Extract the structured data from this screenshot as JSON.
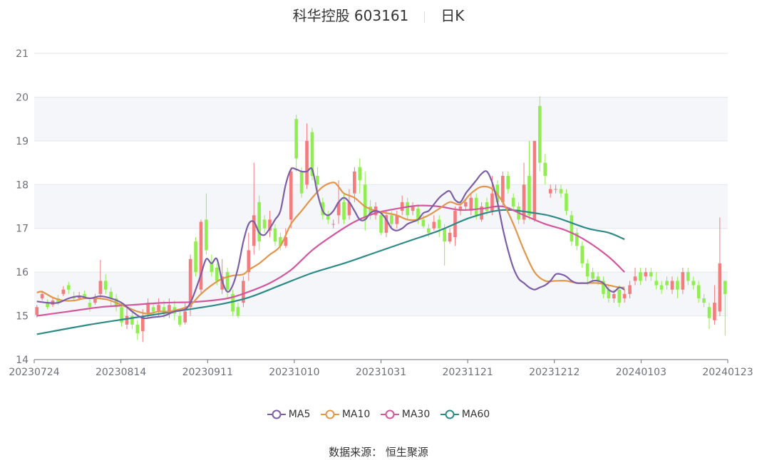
{
  "title": {
    "name": "科华控股 603161",
    "period": "日K"
  },
  "source": "数据来源： 恒生聚源",
  "colors": {
    "up": "#f47c7c",
    "down": "#90ee50",
    "ma5": "#7b5ea7",
    "ma10": "#e1964a",
    "ma30": "#d2579c",
    "ma60": "#2e8a87",
    "band": "#f5f6fa",
    "grid": "#e3e6ee",
    "axis": "#6e7079"
  },
  "chart_data": {
    "type": "candlestick",
    "x_ticks": [
      "20230724",
      "20230814",
      "20230911",
      "20231010",
      "20231031",
      "20231121",
      "20231212",
      "20240103",
      "20240123"
    ],
    "ylim": [
      14,
      21
    ],
    "y_ticks": [
      14,
      15,
      16,
      17,
      18,
      19,
      20,
      21
    ],
    "legend": [
      "MA5",
      "MA10",
      "MA30",
      "MA60"
    ],
    "candles": [
      [
        15.02,
        15.2,
        14.96,
        15.25
      ],
      [
        15.4,
        15.5,
        15.35,
        15.58
      ],
      [
        15.3,
        15.2,
        15.15,
        15.38
      ],
      [
        15.25,
        15.35,
        15.2,
        15.42
      ],
      [
        15.4,
        15.3,
        15.25,
        15.48
      ],
      [
        15.5,
        15.6,
        15.45,
        15.68
      ],
      [
        15.7,
        15.6,
        15.5,
        15.78
      ],
      [
        15.45,
        15.4,
        15.35,
        15.55
      ],
      [
        15.4,
        15.45,
        15.35,
        15.55
      ],
      [
        15.5,
        15.42,
        15.38,
        15.58
      ],
      [
        15.3,
        15.2,
        15.1,
        15.38
      ],
      [
        15.3,
        15.4,
        15.25,
        15.5
      ],
      [
        15.5,
        15.8,
        15.4,
        16.28
      ],
      [
        15.8,
        15.6,
        15.5,
        15.95
      ],
      [
        15.55,
        15.4,
        15.2,
        15.65
      ],
      [
        15.4,
        15.2,
        15.1,
        15.5
      ],
      [
        15.2,
        14.85,
        14.75,
        15.3
      ],
      [
        14.8,
        15.0,
        14.7,
        15.2
      ],
      [
        15.0,
        14.8,
        14.7,
        15.1
      ],
      [
        14.8,
        14.6,
        14.45,
        14.9
      ],
      [
        14.65,
        15.0,
        14.4,
        15.15
      ],
      [
        15.05,
        15.3,
        14.95,
        15.4
      ],
      [
        15.2,
        15.1,
        15.0,
        15.3
      ],
      [
        15.1,
        15.25,
        15.0,
        15.4
      ],
      [
        15.2,
        15.05,
        14.95,
        15.35
      ],
      [
        15.05,
        15.25,
        14.95,
        15.4
      ],
      [
        15.2,
        15.05,
        14.9,
        15.35
      ],
      [
        15.0,
        14.8,
        14.75,
        15.15
      ],
      [
        14.85,
        15.1,
        14.8,
        15.3
      ],
      [
        15.2,
        16.3,
        15.0,
        16.4
      ],
      [
        16.7,
        16.0,
        15.9,
        16.8
      ],
      [
        15.6,
        17.15,
        15.5,
        17.2
      ],
      [
        17.2,
        16.5,
        16.4,
        17.8
      ],
      [
        16.2,
        16.0,
        15.9,
        16.4
      ],
      [
        16.1,
        15.8,
        15.7,
        16.2
      ],
      [
        15.6,
        15.9,
        15.5,
        16.3
      ],
      [
        16.0,
        15.6,
        15.4,
        16.1
      ],
      [
        15.5,
        15.1,
        15.0,
        15.6
      ],
      [
        15.2,
        15.0,
        14.95,
        15.3
      ],
      [
        15.3,
        15.8,
        15.2,
        15.9
      ],
      [
        16.0,
        16.5,
        15.8,
        16.9
      ],
      [
        16.6,
        17.3,
        16.4,
        18.5
      ],
      [
        17.6,
        16.7,
        16.5,
        17.75
      ],
      [
        17.2,
        17.0,
        16.9,
        17.3
      ],
      [
        16.95,
        17.2,
        16.8,
        17.4
      ],
      [
        17.0,
        16.7,
        16.6,
        17.1
      ],
      [
        16.8,
        16.6,
        16.5,
        16.9
      ],
      [
        16.6,
        16.8,
        16.55,
        17.0
      ],
      [
        17.2,
        18.3,
        17.0,
        18.4
      ],
      [
        19.5,
        18.6,
        18.3,
        19.6
      ],
      [
        18.3,
        17.8,
        17.7,
        18.4
      ],
      [
        18.0,
        19.0,
        17.9,
        19.4
      ],
      [
        19.2,
        18.2,
        18.1,
        19.3
      ],
      [
        18.2,
        18.0,
        17.8,
        18.4
      ],
      [
        17.6,
        17.3,
        17.2,
        17.7
      ],
      [
        17.3,
        17.2,
        17.1,
        17.4
      ],
      [
        17.1,
        17.1,
        17.0,
        17.2
      ],
      [
        17.3,
        17.6,
        17.1,
        18.1
      ],
      [
        17.6,
        17.2,
        17.1,
        17.8
      ],
      [
        17.3,
        17.6,
        17.2,
        17.9
      ],
      [
        17.8,
        18.3,
        17.6,
        18.4
      ],
      [
        18.4,
        18.1,
        17.8,
        18.6
      ],
      [
        18.0,
        17.2,
        16.95,
        18.3
      ],
      [
        17.5,
        17.3,
        17.2,
        17.65
      ],
      [
        17.3,
        17.5,
        17.2,
        17.6
      ],
      [
        17.3,
        16.9,
        16.85,
        17.4
      ],
      [
        16.9,
        17.3,
        16.8,
        17.4
      ],
      [
        17.3,
        17.1,
        17.0,
        17.4
      ],
      [
        17.1,
        17.3,
        17.0,
        17.4
      ],
      [
        17.4,
        17.6,
        17.3,
        17.75
      ],
      [
        17.6,
        17.3,
        17.2,
        17.7
      ],
      [
        17.4,
        17.5,
        17.3,
        17.6
      ],
      [
        17.45,
        17.2,
        17.1,
        17.55
      ],
      [
        17.2,
        17.05,
        17.0,
        17.3
      ],
      [
        17.0,
        16.9,
        16.8,
        17.1
      ],
      [
        17.0,
        17.15,
        16.95,
        17.3
      ],
      [
        17.2,
        17.0,
        16.8,
        17.3
      ],
      [
        17.0,
        16.7,
        16.15,
        17.1
      ],
      [
        16.7,
        16.9,
        16.65,
        17.0
      ],
      [
        16.8,
        17.4,
        16.6,
        17.5
      ],
      [
        17.4,
        17.5,
        17.3,
        17.6
      ],
      [
        17.5,
        17.6,
        17.4,
        17.65
      ],
      [
        17.4,
        17.7,
        17.3,
        17.8
      ],
      [
        17.7,
        17.3,
        17.2,
        17.8
      ],
      [
        17.2,
        17.5,
        17.15,
        17.6
      ],
      [
        17.6,
        17.4,
        17.3,
        17.7
      ],
      [
        17.4,
        17.8,
        17.3,
        18.2
      ],
      [
        18.0,
        17.6,
        17.4,
        18.1
      ],
      [
        17.6,
        18.2,
        17.5,
        18.3
      ],
      [
        18.2,
        17.9,
        17.8,
        18.3
      ],
      [
        17.7,
        17.5,
        17.4,
        17.8
      ],
      [
        17.5,
        17.2,
        17.1,
        17.6
      ],
      [
        17.2,
        18.0,
        17.1,
        18.5
      ],
      [
        18.2,
        17.3,
        17.2,
        19.0
      ],
      [
        17.2,
        19.0,
        17.15,
        19.0
      ],
      [
        19.8,
        18.5,
        18.3,
        20.02
      ],
      [
        18.5,
        18.2,
        18.0,
        18.7
      ],
      [
        17.8,
        17.9,
        17.7,
        18.0
      ],
      [
        17.9,
        17.9,
        17.8,
        18.0
      ],
      [
        17.9,
        17.8,
        17.7,
        18.0
      ],
      [
        17.8,
        17.4,
        17.3,
        17.9
      ],
      [
        17.3,
        16.7,
        16.6,
        17.4
      ],
      [
        16.9,
        16.6,
        16.5,
        17.0
      ],
      [
        16.6,
        16.2,
        16.1,
        16.7
      ],
      [
        16.2,
        15.9,
        15.7,
        16.3
      ],
      [
        16.0,
        15.85,
        15.75,
        16.1
      ],
      [
        15.9,
        15.8,
        15.7,
        16.0
      ],
      [
        15.8,
        15.5,
        15.4,
        15.9
      ],
      [
        15.6,
        15.4,
        15.3,
        15.7
      ],
      [
        15.4,
        15.5,
        15.3,
        15.6
      ],
      [
        15.6,
        15.3,
        15.2,
        15.7
      ],
      [
        15.4,
        15.5,
        15.3,
        15.6
      ],
      [
        15.5,
        15.7,
        15.4,
        15.8
      ],
      [
        15.8,
        15.9,
        15.7,
        16.1
      ],
      [
        16.0,
        15.8,
        15.7,
        16.1
      ],
      [
        15.9,
        16.0,
        15.8,
        16.1
      ],
      [
        16.0,
        15.9,
        15.8,
        16.1
      ],
      [
        15.8,
        15.7,
        15.6,
        16.0
      ],
      [
        15.7,
        15.6,
        15.5,
        15.8
      ],
      [
        15.8,
        15.7,
        15.6,
        15.9
      ],
      [
        15.6,
        15.8,
        15.5,
        15.9
      ],
      [
        15.8,
        15.6,
        15.4,
        15.9
      ],
      [
        15.6,
        16.0,
        15.5,
        16.1
      ],
      [
        16.0,
        15.8,
        15.7,
        16.1
      ],
      [
        15.8,
        15.7,
        15.6,
        15.9
      ],
      [
        15.7,
        15.4,
        15.3,
        15.8
      ],
      [
        15.4,
        15.3,
        15.2,
        15.5
      ],
      [
        15.2,
        14.95,
        14.7,
        15.3
      ],
      [
        14.9,
        15.3,
        14.8,
        15.7
      ],
      [
        15.1,
        16.2,
        15.0,
        17.25
      ],
      [
        15.8,
        15.5,
        14.55,
        15.8
      ]
    ],
    "ma5": [
      [
        0,
        15.33
      ],
      [
        2,
        15.3
      ],
      [
        4,
        15.3
      ],
      [
        6,
        15.4
      ],
      [
        8,
        15.45
      ],
      [
        10,
        15.4
      ],
      [
        12,
        15.45
      ],
      [
        14,
        15.4
      ],
      [
        16,
        15.3
      ],
      [
        18,
        15.1
      ],
      [
        20,
        14.95
      ],
      [
        22,
        14.97
      ],
      [
        24,
        15.0
      ],
      [
        26,
        15.1
      ],
      [
        28,
        15.15
      ],
      [
        29,
        15.3
      ],
      [
        30,
        15.6
      ],
      [
        31,
        15.95
      ],
      [
        32,
        16.3
      ],
      [
        33,
        16.2
      ],
      [
        34,
        16.3
      ],
      [
        35,
        15.8
      ],
      [
        36,
        15.55
      ],
      [
        37,
        15.7
      ],
      [
        38,
        16.1
      ],
      [
        39,
        16.7
      ],
      [
        40,
        17.1
      ],
      [
        41,
        17.15
      ],
      [
        42,
        16.9
      ],
      [
        43,
        16.85
      ],
      [
        44,
        17.0
      ],
      [
        45,
        17.2
      ],
      [
        46,
        17.4
      ],
      [
        47,
        18.0
      ],
      [
        48,
        18.35
      ],
      [
        49,
        18.35
      ],
      [
        50,
        18.3
      ],
      [
        51,
        18.3
      ],
      [
        52,
        18.35
      ],
      [
        53,
        17.8
      ],
      [
        54,
        17.4
      ],
      [
        55,
        17.3
      ],
      [
        56,
        17.4
      ],
      [
        57,
        17.6
      ],
      [
        58,
        17.7
      ],
      [
        59,
        17.6
      ],
      [
        60,
        17.4
      ],
      [
        61,
        17.2
      ],
      [
        62,
        17.2
      ],
      [
        63,
        17.35
      ],
      [
        64,
        17.4
      ],
      [
        65,
        17.35
      ],
      [
        66,
        17.2
      ],
      [
        67,
        17.0
      ],
      [
        68,
        16.95
      ],
      [
        69,
        17.0
      ],
      [
        70,
        17.1
      ],
      [
        71,
        17.15
      ],
      [
        72,
        17.2
      ],
      [
        73,
        17.35
      ],
      [
        74,
        17.4
      ],
      [
        75,
        17.55
      ],
      [
        76,
        17.7
      ],
      [
        77,
        17.8
      ],
      [
        78,
        17.85
      ],
      [
        79,
        17.65
      ],
      [
        80,
        17.6
      ],
      [
        81,
        17.8
      ],
      [
        82,
        17.95
      ],
      [
        83,
        18.1
      ],
      [
        84,
        18.25
      ],
      [
        85,
        18.3
      ],
      [
        86,
        18.05
      ],
      [
        87,
        17.6
      ],
      [
        88,
        17.0
      ],
      [
        89,
        16.5
      ],
      [
        90,
        16.1
      ],
      [
        91,
        15.85
      ],
      [
        92,
        15.75
      ],
      [
        93,
        15.65
      ],
      [
        94,
        15.6
      ],
      [
        95,
        15.65
      ],
      [
        96,
        15.7
      ],
      [
        97,
        15.8
      ],
      [
        98,
        15.95
      ],
      [
        99,
        15.95
      ],
      [
        100,
        15.9
      ],
      [
        101,
        15.8
      ],
      [
        102,
        15.75
      ],
      [
        103,
        15.75
      ],
      [
        104,
        15.75
      ],
      [
        105,
        15.8
      ],
      [
        106,
        15.8
      ],
      [
        107,
        15.75
      ],
      [
        108,
        15.6
      ],
      [
        109,
        15.55
      ],
      [
        110,
        15.65
      ],
      [
        111,
        15.6
      ]
    ],
    "ma10": [
      [
        0,
        15.53
      ],
      [
        1,
        15.55
      ],
      [
        3,
        15.42
      ],
      [
        5,
        15.35
      ],
      [
        7,
        15.35
      ],
      [
        9,
        15.4
      ],
      [
        11,
        15.4
      ],
      [
        13,
        15.38
      ],
      [
        15,
        15.3
      ],
      [
        17,
        15.2
      ],
      [
        19,
        15.1
      ],
      [
        21,
        15.05
      ],
      [
        23,
        15.1
      ],
      [
        25,
        15.1
      ],
      [
        27,
        15.15
      ],
      [
        29,
        15.25
      ],
      [
        31,
        15.5
      ],
      [
        33,
        15.7
      ],
      [
        35,
        15.85
      ],
      [
        37,
        15.92
      ],
      [
        39,
        15.95
      ],
      [
        40,
        16.05
      ],
      [
        42,
        16.2
      ],
      [
        44,
        16.4
      ],
      [
        46,
        16.6
      ],
      [
        48,
        17.1
      ],
      [
        50,
        17.4
      ],
      [
        52,
        17.7
      ],
      [
        54,
        17.95
      ],
      [
        56,
        18.05
      ],
      [
        57,
        17.95
      ],
      [
        58,
        17.8
      ],
      [
        60,
        17.7
      ],
      [
        62,
        17.5
      ],
      [
        64,
        17.4
      ],
      [
        66,
        17.35
      ],
      [
        68,
        17.3
      ],
      [
        70,
        17.2
      ],
      [
        72,
        17.2
      ],
      [
        74,
        17.3
      ],
      [
        76,
        17.45
      ],
      [
        78,
        17.6
      ],
      [
        80,
        17.55
      ],
      [
        82,
        17.8
      ],
      [
        84,
        17.95
      ],
      [
        86,
        17.9
      ],
      [
        88,
        17.6
      ],
      [
        90,
        17.1
      ],
      [
        92,
        16.5
      ],
      [
        94,
        16.0
      ],
      [
        96,
        15.8
      ],
      [
        98,
        15.8
      ],
      [
        100,
        15.8
      ],
      [
        102,
        15.75
      ],
      [
        104,
        15.75
      ],
      [
        106,
        15.75
      ],
      [
        108,
        15.7
      ],
      [
        110,
        15.65
      ],
      [
        111,
        15.65
      ]
    ],
    "ma30": [
      [
        0,
        15.0
      ],
      [
        6,
        15.1
      ],
      [
        12,
        15.2
      ],
      [
        18,
        15.25
      ],
      [
        24,
        15.3
      ],
      [
        30,
        15.32
      ],
      [
        36,
        15.4
      ],
      [
        40,
        15.55
      ],
      [
        44,
        15.75
      ],
      [
        48,
        16.05
      ],
      [
        52,
        16.5
      ],
      [
        56,
        16.85
      ],
      [
        60,
        17.15
      ],
      [
        64,
        17.35
      ],
      [
        68,
        17.45
      ],
      [
        72,
        17.52
      ],
      [
        76,
        17.5
      ],
      [
        80,
        17.42
      ],
      [
        84,
        17.45
      ],
      [
        88,
        17.5
      ],
      [
        92,
        17.3
      ],
      [
        96,
        17.1
      ],
      [
        100,
        16.95
      ],
      [
        104,
        16.7
      ],
      [
        108,
        16.35
      ],
      [
        111,
        16.0
      ]
    ],
    "ma60": [
      [
        0,
        14.58
      ],
      [
        10,
        14.8
      ],
      [
        18,
        14.95
      ],
      [
        26,
        15.1
      ],
      [
        34,
        15.25
      ],
      [
        40,
        15.42
      ],
      [
        46,
        15.7
      ],
      [
        52,
        15.98
      ],
      [
        58,
        16.2
      ],
      [
        64,
        16.45
      ],
      [
        70,
        16.7
      ],
      [
        76,
        16.95
      ],
      [
        82,
        17.25
      ],
      [
        88,
        17.42
      ],
      [
        94,
        17.35
      ],
      [
        98,
        17.25
      ],
      [
        104,
        17.0
      ],
      [
        108,
        16.9
      ],
      [
        111,
        16.75
      ]
    ]
  }
}
